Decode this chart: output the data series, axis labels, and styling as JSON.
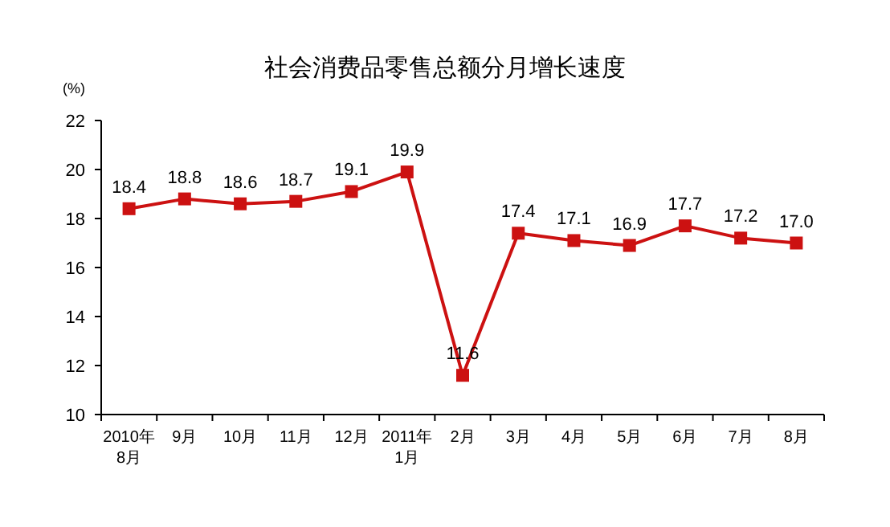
{
  "chart_data": {
    "type": "line",
    "title": "社会消费品零售总额分月增长速度",
    "ylabel": "(%)",
    "categories": [
      "2010年\n8月",
      "9月",
      "10月",
      "11月",
      "12月",
      "2011年\n1月",
      "2月",
      "3月",
      "4月",
      "5月",
      "6月",
      "7月",
      "8月"
    ],
    "series": [
      {
        "color": "#cc1111",
        "values": [
          18.4,
          18.8,
          18.6,
          18.7,
          19.1,
          19.9,
          11.6,
          17.4,
          17.1,
          16.9,
          17.7,
          17.2,
          17.0
        ]
      }
    ],
    "value_labels": [
      "18.4",
      "18.8",
      "18.6",
      "18.7",
      "19.1",
      "19.9",
      "11.6",
      "17.4",
      "17.1",
      "16.9",
      "17.7",
      "17.2",
      "17.0"
    ],
    "ylim": [
      10,
      22
    ],
    "yticks": [
      10,
      12,
      14,
      16,
      18,
      20,
      22
    ],
    "marker": "square",
    "line_style": "solid",
    "grid": false
  }
}
